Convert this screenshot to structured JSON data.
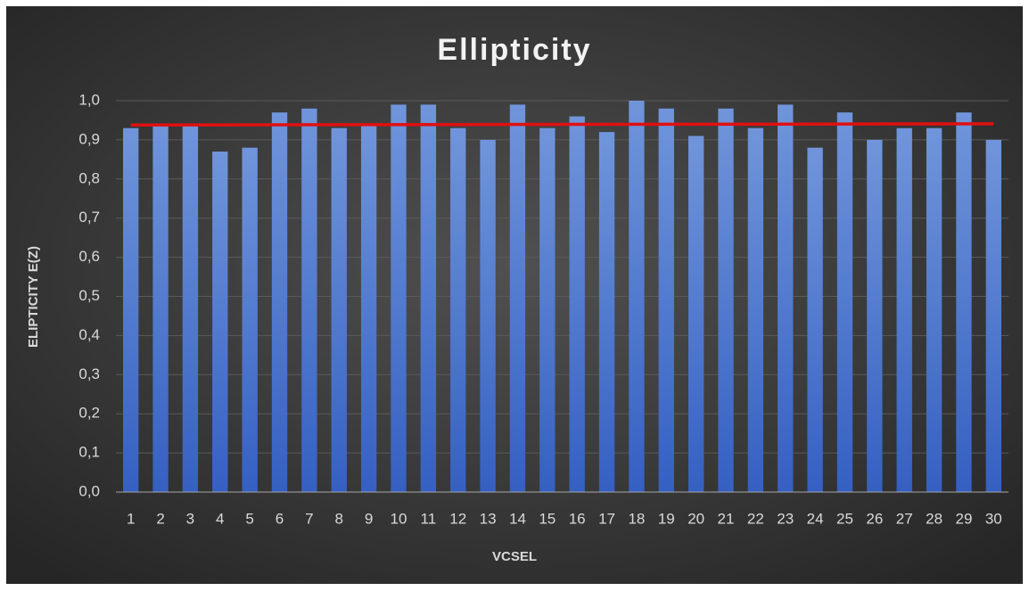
{
  "chart_data": {
    "type": "bar",
    "title": "Ellipticity",
    "x_label": "VCSEL",
    "y_label": "ELIPTICITY E(Z)",
    "categories": [
      "1",
      "2",
      "3",
      "4",
      "5",
      "6",
      "7",
      "8",
      "9",
      "10",
      "11",
      "12",
      "13",
      "14",
      "15",
      "16",
      "17",
      "18",
      "19",
      "20",
      "21",
      "22",
      "23",
      "24",
      "25",
      "26",
      "27",
      "28",
      "29",
      "30"
    ],
    "values": [
      0.93,
      0.94,
      0.94,
      0.87,
      0.88,
      0.97,
      0.98,
      0.93,
      0.94,
      0.99,
      0.99,
      0.93,
      0.9,
      0.99,
      0.93,
      0.96,
      0.92,
      1.0,
      0.98,
      0.91,
      0.98,
      0.93,
      0.99,
      0.88,
      0.97,
      0.9,
      0.93,
      0.93,
      0.97,
      0.9
    ],
    "color": "#4a74cf",
    "trendline": {
      "color": "#e01010",
      "values": [
        0.938,
        0.941
      ]
    },
    "ylim": [
      0,
      1.0
    ],
    "yticks": [
      {
        "value": 0,
        "label": "0,0"
      },
      {
        "value": 0.1,
        "label": "0,1"
      },
      {
        "value": 0.2,
        "label": "0,2"
      },
      {
        "value": 0.3,
        "label": "0,3"
      },
      {
        "value": 0.4,
        "label": "0,4"
      },
      {
        "value": 0.5,
        "label": "0,5"
      },
      {
        "value": 0.6,
        "label": "0,6"
      },
      {
        "value": 0.7,
        "label": "0,7"
      },
      {
        "value": 0.8,
        "label": "0,8"
      },
      {
        "value": 0.9,
        "label": "0,9"
      },
      {
        "value": 1.0,
        "label": "1,0"
      }
    ],
    "grid": true
  }
}
